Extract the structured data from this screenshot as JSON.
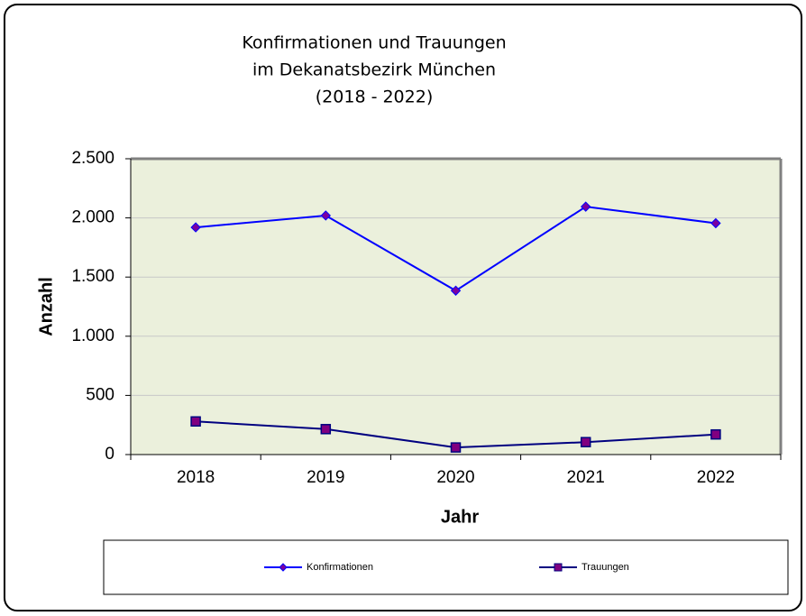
{
  "chart_data": {
    "type": "line",
    "title": [
      "Konfirmationen und Trauungen",
      "im Dekanatsbezirk München",
      "(2018 - 2022)"
    ],
    "x_label": "Jahr",
    "y_label": "Anzahl",
    "categories": [
      "2018",
      "2019",
      "2020",
      "2021",
      "2022"
    ],
    "series": [
      {
        "name": "Konfirmationen",
        "color": "#0000ff",
        "marker_color": "#7a00a0",
        "marker": "diamond",
        "values": [
          1920,
          2020,
          1385,
          2095,
          1955
        ]
      },
      {
        "name": "Trauungen",
        "color": "#000080",
        "marker_color": "#800080",
        "marker": "square",
        "values": [
          280,
          215,
          60,
          105,
          170
        ]
      }
    ],
    "ylim": [
      0,
      2500
    ],
    "yticks": [
      0,
      500,
      {
        "value": 1000,
        "label": "1.000"
      },
      {
        "value": 1500,
        "label": "1.500"
      },
      {
        "value": 2000,
        "label": "2.000"
      },
      {
        "value": 2500,
        "label": "2.500"
      }
    ],
    "grid": true,
    "legend": "bottom"
  }
}
